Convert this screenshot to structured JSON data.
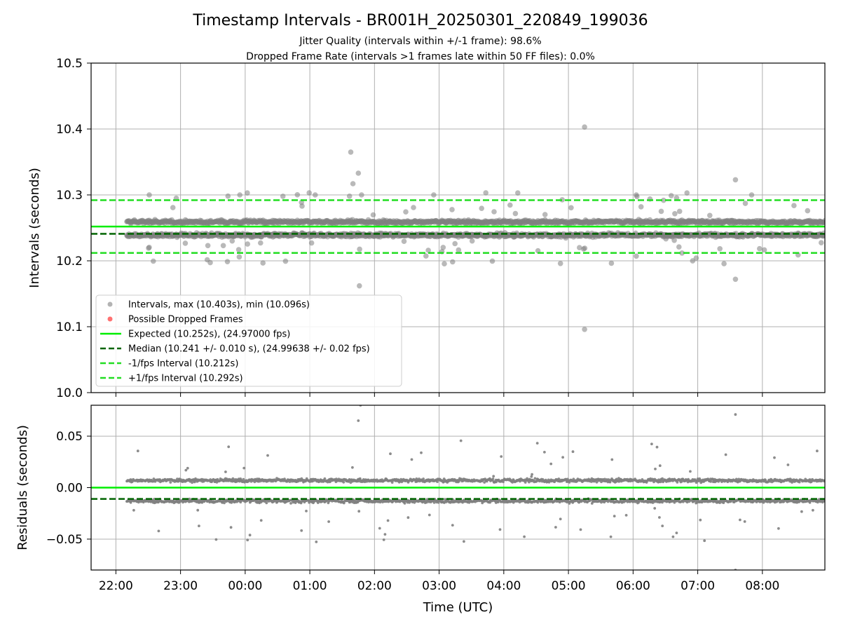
{
  "figure": {
    "title": "Timestamp Intervals - BR001H_20250301_220849_199036",
    "subtitle1": "Jitter Quality (intervals within +/-1 frame): 98.6%",
    "subtitle2": "Dropped Frame Rate (intervals >1 frames late within 50 FF files): 0.0%"
  },
  "chart_data": [
    {
      "type": "scatter",
      "panel": "top",
      "xlabel": "",
      "ylabel": "Intervals (seconds)",
      "xlim": [
        "21:37",
        "08:58"
      ],
      "ylim": [
        10.0,
        10.5
      ],
      "yticks": [
        "10.0",
        "10.1",
        "10.2",
        "10.3",
        "10.4",
        "10.5"
      ],
      "grid": true,
      "legend_position": "lower-left",
      "legend": [
        "Intervals, max (10.403s), min (10.096s)",
        "Possible Dropped Frames",
        "Expected (10.252s), (24.97000 fps)",
        "Median (10.241 +/- 0.010 s), (24.99638 +/- 0.02 fps)",
        "-1/fps Interval (10.212s)",
        "+1/fps Interval (10.292s)"
      ],
      "reference_lines": {
        "expected": 10.252,
        "median": 10.241,
        "minus_one_fps": 10.212,
        "plus_one_fps": 10.292
      },
      "band_upper": 10.259,
      "band_lower": 10.239,
      "outliers": [
        {
          "x": "22:31",
          "y": 10.3
        },
        {
          "x": "22:56",
          "y": 10.295
        },
        {
          "x": "23:55",
          "y": 10.3
        },
        {
          "x": "00:02",
          "y": 10.303
        },
        {
          "x": "00:35",
          "y": 10.298
        },
        {
          "x": "01:05",
          "y": 10.3
        },
        {
          "x": "01:38",
          "y": 10.365
        },
        {
          "x": "01:40",
          "y": 10.317
        },
        {
          "x": "01:45",
          "y": 10.333
        },
        {
          "x": "01:46",
          "y": 10.162
        },
        {
          "x": "01:48",
          "y": 10.3
        },
        {
          "x": "02:55",
          "y": 10.3
        },
        {
          "x": "04:13",
          "y": 10.303
        },
        {
          "x": "05:15",
          "y": 10.403
        },
        {
          "x": "05:15",
          "y": 10.096
        },
        {
          "x": "06:03",
          "y": 10.3
        },
        {
          "x": "06:50",
          "y": 10.303
        },
        {
          "x": "07:35",
          "y": 10.323
        },
        {
          "x": "07:35",
          "y": 10.172
        },
        {
          "x": "07:50",
          "y": 10.3
        }
      ]
    },
    {
      "type": "scatter",
      "panel": "bottom",
      "xlabel": "Time (UTC)",
      "ylabel": "Residuals (seconds)",
      "xlim": [
        "21:37",
        "08:58"
      ],
      "ylim": [
        -0.08,
        0.08
      ],
      "yticks": [
        "−0.05",
        "0.00",
        "0.05"
      ],
      "xticks": [
        "22:00",
        "23:00",
        "00:00",
        "01:00",
        "02:00",
        "03:00",
        "04:00",
        "05:00",
        "06:00",
        "07:00",
        "08:00"
      ],
      "grid": true,
      "reference_lines": {
        "expected": 0.0,
        "median": -0.011
      },
      "band_upper": 0.007,
      "band_lower": -0.013,
      "outliers": [
        {
          "x": "01:45",
          "y": 0.065
        },
        {
          "x": "07:35",
          "y": 0.071
        },
        {
          "x": "07:35",
          "y": -0.08
        },
        {
          "x": "01:47",
          "y": 0.08
        }
      ]
    }
  ],
  "colors": {
    "intervals": "#808080",
    "dropped": "#ff4d4d",
    "expected": "#00ee00",
    "median": "#006400",
    "fps_band": "#22dd22",
    "grid": "#b0b0b0"
  }
}
